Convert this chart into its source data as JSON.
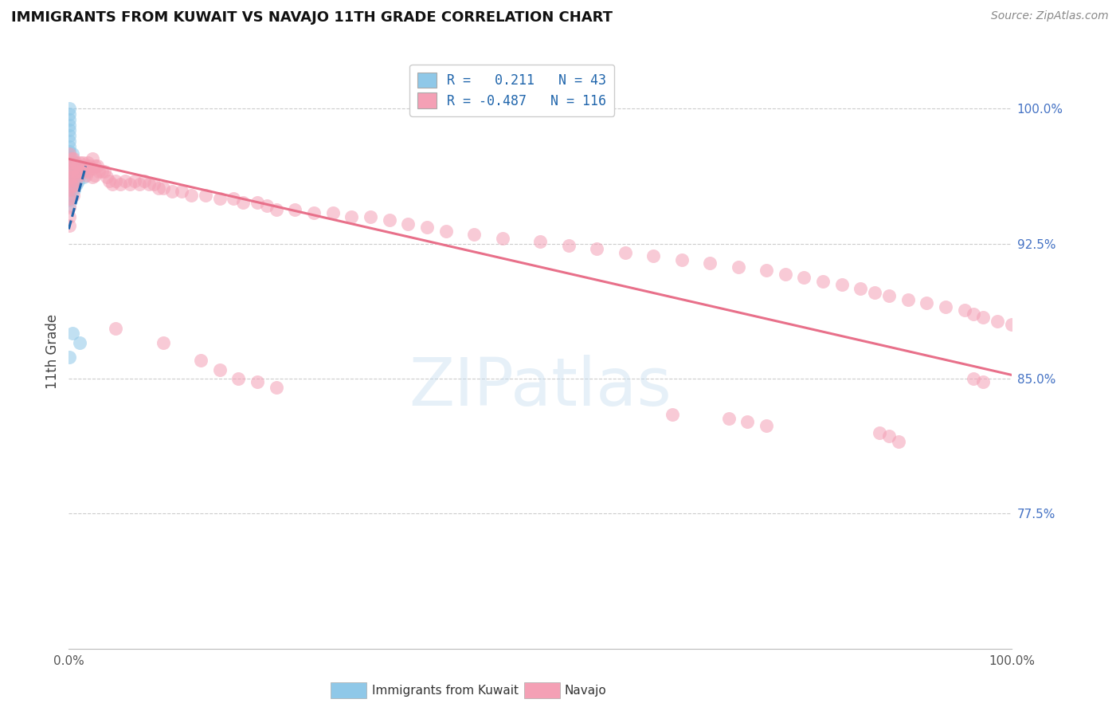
{
  "title": "IMMIGRANTS FROM KUWAIT VS NAVAJO 11TH GRADE CORRELATION CHART",
  "source": "Source: ZipAtlas.com",
  "ylabel": "11th Grade",
  "y_tick_labels": [
    "100.0%",
    "92.5%",
    "85.0%",
    "77.5%"
  ],
  "y_tick_values": [
    1.0,
    0.925,
    0.85,
    0.775
  ],
  "x_range": [
    0.0,
    1.0
  ],
  "y_range": [
    0.7,
    1.03
  ],
  "watermark": "ZIPatlas",
  "blue_color": "#8fc8e8",
  "pink_color": "#f4a0b5",
  "blue_line_color": "#2166ac",
  "pink_line_color": "#e8708a",
  "blue_scatter_x": [
    0.001,
    0.001,
    0.001,
    0.001,
    0.001,
    0.001,
    0.001,
    0.001,
    0.001,
    0.001,
    0.001,
    0.001,
    0.001,
    0.001,
    0.001,
    0.001,
    0.001,
    0.001,
    0.001,
    0.004,
    0.004,
    0.004,
    0.004,
    0.004,
    0.006,
    0.006,
    0.006,
    0.006,
    0.008,
    0.008,
    0.008,
    0.01,
    0.01,
    0.012,
    0.012,
    0.014,
    0.016,
    0.004,
    0.012,
    0.001
  ],
  "blue_scatter_y": [
    1.0,
    0.997,
    0.994,
    0.991,
    0.988,
    0.985,
    0.982,
    0.979,
    0.976,
    0.973,
    0.97,
    0.967,
    0.964,
    0.961,
    0.958,
    0.955,
    0.952,
    0.949,
    0.946,
    0.975,
    0.97,
    0.965,
    0.96,
    0.955,
    0.97,
    0.965,
    0.96,
    0.955,
    0.968,
    0.963,
    0.958,
    0.965,
    0.96,
    0.968,
    0.963,
    0.965,
    0.962,
    0.875,
    0.87,
    0.862
  ],
  "pink_scatter_x": [
    0.001,
    0.001,
    0.001,
    0.001,
    0.001,
    0.001,
    0.001,
    0.001,
    0.001,
    0.003,
    0.003,
    0.003,
    0.003,
    0.005,
    0.005,
    0.005,
    0.005,
    0.005,
    0.007,
    0.007,
    0.007,
    0.009,
    0.009,
    0.012,
    0.012,
    0.015,
    0.015,
    0.018,
    0.018,
    0.02,
    0.02,
    0.022,
    0.025,
    0.025,
    0.025,
    0.028,
    0.028,
    0.03,
    0.032,
    0.035,
    0.038,
    0.04,
    0.043,
    0.046,
    0.05,
    0.055,
    0.06,
    0.065,
    0.07,
    0.075,
    0.08,
    0.085,
    0.09,
    0.095,
    0.1,
    0.11,
    0.12,
    0.13,
    0.145,
    0.16,
    0.175,
    0.185,
    0.2,
    0.21,
    0.22,
    0.24,
    0.26,
    0.28,
    0.3,
    0.32,
    0.34,
    0.36,
    0.38,
    0.4,
    0.43,
    0.46,
    0.5,
    0.53,
    0.56,
    0.59,
    0.62,
    0.65,
    0.68,
    0.71,
    0.74,
    0.76,
    0.78,
    0.8,
    0.82,
    0.84,
    0.855,
    0.87,
    0.89,
    0.91,
    0.93,
    0.95,
    0.96,
    0.97,
    0.985,
    1.0,
    0.05,
    0.1,
    0.14,
    0.16,
    0.18,
    0.2,
    0.22,
    0.64,
    0.7,
    0.72,
    0.74,
    0.86,
    0.87,
    0.88,
    0.96,
    0.97
  ],
  "pink_scatter_y": [
    0.975,
    0.97,
    0.965,
    0.96,
    0.955,
    0.95,
    0.945,
    0.94,
    0.935,
    0.972,
    0.967,
    0.962,
    0.957,
    0.972,
    0.967,
    0.962,
    0.957,
    0.952,
    0.97,
    0.965,
    0.96,
    0.968,
    0.963,
    0.97,
    0.965,
    0.97,
    0.965,
    0.968,
    0.963,
    0.97,
    0.965,
    0.968,
    0.972,
    0.967,
    0.962,
    0.968,
    0.963,
    0.968,
    0.965,
    0.965,
    0.965,
    0.962,
    0.96,
    0.958,
    0.96,
    0.958,
    0.96,
    0.958,
    0.96,
    0.958,
    0.96,
    0.958,
    0.958,
    0.956,
    0.956,
    0.954,
    0.954,
    0.952,
    0.952,
    0.95,
    0.95,
    0.948,
    0.948,
    0.946,
    0.944,
    0.944,
    0.942,
    0.942,
    0.94,
    0.94,
    0.938,
    0.936,
    0.934,
    0.932,
    0.93,
    0.928,
    0.926,
    0.924,
    0.922,
    0.92,
    0.918,
    0.916,
    0.914,
    0.912,
    0.91,
    0.908,
    0.906,
    0.904,
    0.902,
    0.9,
    0.898,
    0.896,
    0.894,
    0.892,
    0.89,
    0.888,
    0.886,
    0.884,
    0.882,
    0.88,
    0.878,
    0.87,
    0.86,
    0.855,
    0.85,
    0.848,
    0.845,
    0.83,
    0.828,
    0.826,
    0.824,
    0.82,
    0.818,
    0.815,
    0.85,
    0.848
  ],
  "blue_trendline_x": [
    0.0,
    0.018
  ],
  "blue_trendline_y": [
    0.933,
    0.968
  ],
  "pink_trendline_x": [
    0.0,
    1.0
  ],
  "pink_trendline_y": [
    0.972,
    0.852
  ]
}
